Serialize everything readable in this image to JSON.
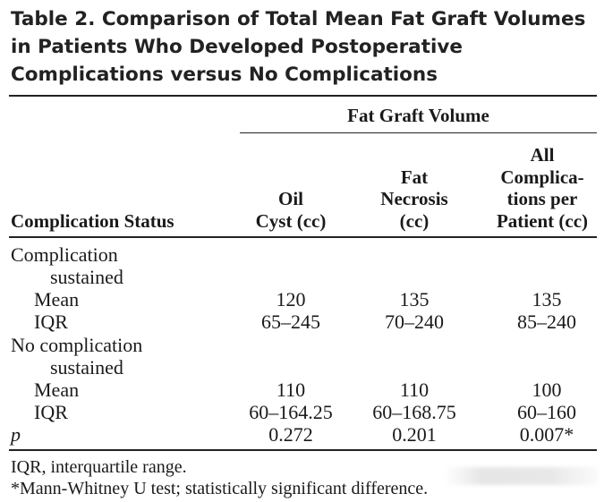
{
  "table": {
    "title": "Table 2.  Comparison of Total Mean Fat Graft Volumes in Patients Who Developed Postoperative Complications versus No Complications",
    "spanner": "Fat Graft Volume",
    "headers": [
      "Complication Status",
      "Oil\nCyst (cc)",
      "Fat\nNecrosis\n(cc)",
      "All\nComplica-\ntions per\nPatient (cc)"
    ],
    "rows": [
      {
        "label": "Complication",
        "cells": [
          "",
          "",
          ""
        ]
      },
      {
        "label": "sustained",
        "cells": [
          "",
          "",
          ""
        ]
      },
      {
        "label": "Mean",
        "cells": [
          "120",
          "135",
          "135"
        ]
      },
      {
        "label": "IQR",
        "cells": [
          "65–245",
          "70–240",
          "85–240"
        ]
      },
      {
        "label": "No complication",
        "cells": [
          "",
          "",
          ""
        ]
      },
      {
        "label": "sustained",
        "cells": [
          "",
          "",
          ""
        ]
      },
      {
        "label": "Mean",
        "cells": [
          "110",
          "110",
          "100"
        ]
      },
      {
        "label": "IQR",
        "cells": [
          "60–164.25",
          "60–168.75",
          "60–160"
        ]
      },
      {
        "label": "p",
        "cells": [
          "0.272",
          "0.201",
          "0.007*"
        ]
      }
    ],
    "footnotes": [
      "IQR, interquartile range.",
      "*Mann-Whitney U test; statistically significant difference."
    ]
  }
}
